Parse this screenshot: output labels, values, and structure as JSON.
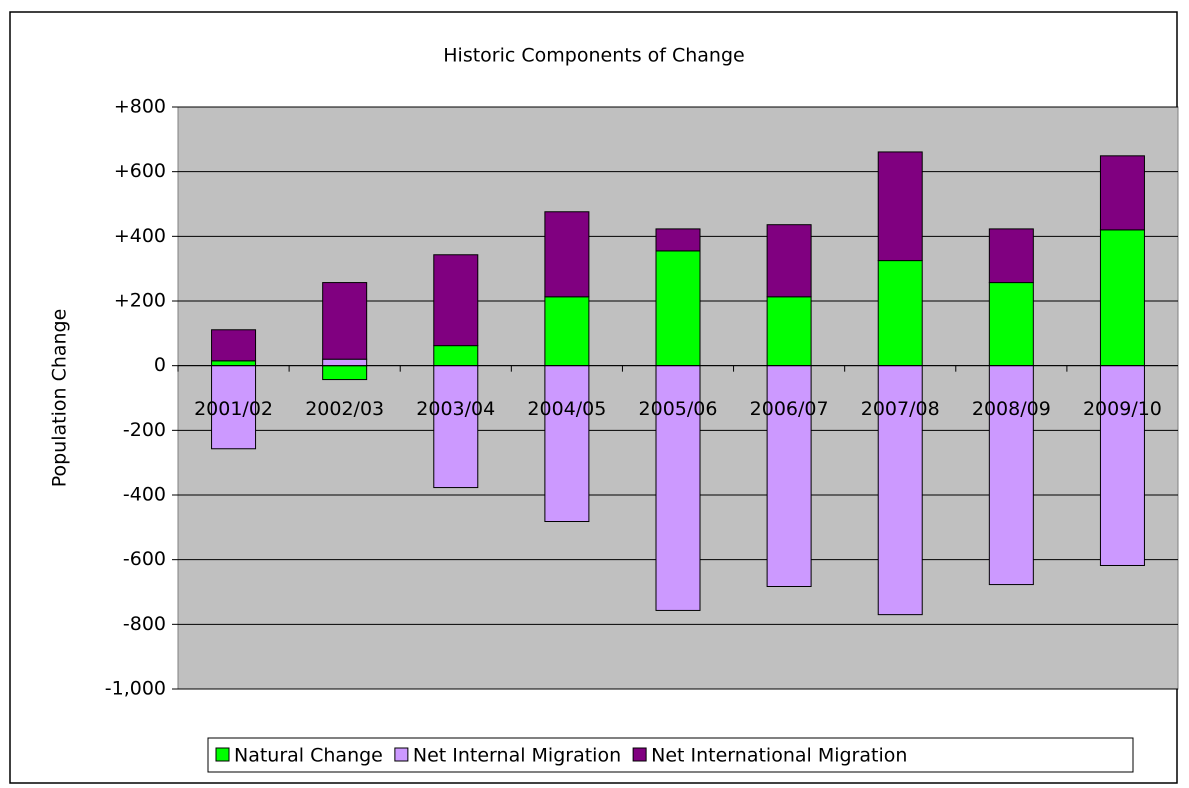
{
  "chart_data": {
    "type": "stacked_bar",
    "title": "Historic Components of Change",
    "y_label": "Population Change",
    "categories": [
      "2001/02",
      "2002/03",
      "2003/04",
      "2004/05",
      "2005/06",
      "2006/07",
      "2007/08",
      "2008/09",
      "2009/10"
    ],
    "series": [
      {
        "name": "Natural Change",
        "color": "#00ff00",
        "values": [
          15,
          -43,
          62,
          213,
          355,
          213,
          325,
          257,
          420
        ]
      },
      {
        "name": "Net Internal Migration",
        "color": "#cc99ff",
        "values": [
          -257,
          20,
          -377,
          -482,
          -757,
          -683,
          -770,
          -677,
          -618
        ]
      },
      {
        "name": "Net International Migration",
        "color": "#800080",
        "values": [
          96,
          237,
          281,
          263,
          68,
          223,
          336,
          166,
          229
        ]
      }
    ],
    "ylim": [
      -1000,
      800
    ],
    "yticks": [
      {
        "value": 800,
        "label": "+800"
      },
      {
        "value": 600,
        "label": "+600"
      },
      {
        "value": 400,
        "label": "+400"
      },
      {
        "value": 200,
        "label": "+200"
      },
      0,
      -200,
      -400,
      -600,
      -800,
      {
        "value": -1000,
        "label": "-1,000"
      }
    ],
    "grid": true,
    "legend": "bottom"
  }
}
